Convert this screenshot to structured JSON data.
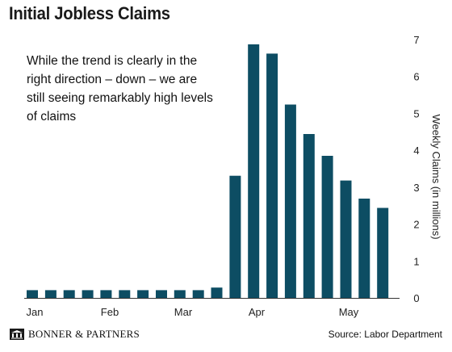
{
  "chart_data": {
    "type": "bar",
    "title": "Initial Jobless Claims",
    "annotation": "While the trend is clearly in the right direction – down – we are still seeing remarkably high levels of claims",
    "ylabel": "Weekly Claims (in millions)",
    "ylim": [
      0,
      7
    ],
    "yticks": [
      "0",
      "1",
      "2",
      "3",
      "4",
      "5",
      "6",
      "7"
    ],
    "x_month_labels": [
      "Jan",
      "Feb",
      "Mar",
      "Apr",
      "May"
    ],
    "values": [
      0.21,
      0.21,
      0.21,
      0.21,
      0.21,
      0.21,
      0.21,
      0.21,
      0.21,
      0.21,
      0.28,
      3.31,
      6.87,
      6.62,
      5.24,
      4.44,
      3.85,
      3.18,
      2.69,
      2.44
    ],
    "bar_color": "#0d4d63",
    "grid": false
  },
  "footer": {
    "logo_icon": "building-columns-icon",
    "brand": "BONNER & PARTNERS",
    "source": "Source: Labor Department"
  }
}
